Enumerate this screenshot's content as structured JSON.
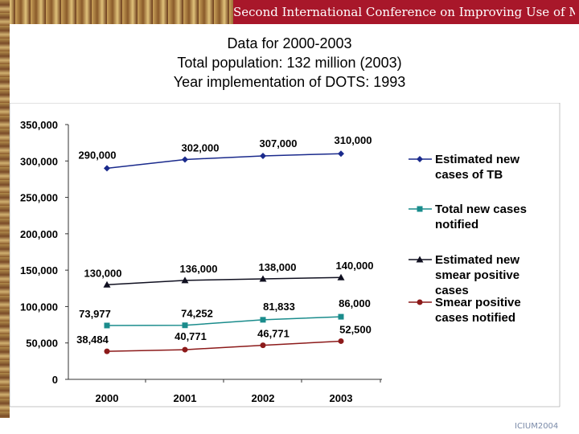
{
  "banner": {
    "text": "Second International Conference on Improving Use of Medicines"
  },
  "title": {
    "lines": [
      "Data for 2000-2003",
      "Total population: 132 million (2003)",
      "Year implementation of DOTS: 1993"
    ]
  },
  "logo": {
    "text": "ICIUM2004"
  },
  "chart_data": {
    "type": "line",
    "categories": [
      "2000",
      "2001",
      "2002",
      "2003"
    ],
    "ylim": [
      0,
      350000
    ],
    "yticks": [
      "0",
      "50,000",
      "100,000",
      "150,000",
      "200,000",
      "250,000",
      "300,000",
      "350,000"
    ],
    "ytick_values": [
      0,
      50000,
      100000,
      150000,
      200000,
      250000,
      300000,
      350000
    ],
    "legend_position": "right",
    "grid": false,
    "series": [
      {
        "name": "Estimated new cases of TB",
        "legend_lines": [
          "Estimated new",
          "cases of TB"
        ],
        "color": "#1a2a8c",
        "marker": "diamond",
        "values": [
          290000,
          302000,
          307000,
          310000
        ],
        "labels": [
          "290,000",
          "302,000",
          "307,000",
          "310,000"
        ]
      },
      {
        "name": "Total new cases notified",
        "legend_lines": [
          "Total new cases",
          "notified"
        ],
        "color": "#1a8c8c",
        "marker": "square",
        "values": [
          73977,
          74252,
          81833,
          86000
        ],
        "labels": [
          "73,977",
          "74,252",
          "81,833",
          "86,000"
        ]
      },
      {
        "name": "Estimated new smear positive cases",
        "legend_lines": [
          "Estimated new",
          "smear positive",
          "cases"
        ],
        "color": "#101020",
        "marker": "triangle",
        "values": [
          130000,
          136000,
          138000,
          140000
        ],
        "labels": [
          "130,000",
          "136,000",
          "138,000",
          "140,000"
        ]
      },
      {
        "name": "Smear positive cases notified",
        "legend_lines": [
          "Smear positive",
          "cases notified"
        ],
        "color": "#8c1a1a",
        "marker": "circle",
        "values": [
          38484,
          40771,
          46771,
          52500
        ],
        "labels": [
          "38,484",
          "40,771",
          "46,771",
          "52,500"
        ]
      }
    ]
  }
}
